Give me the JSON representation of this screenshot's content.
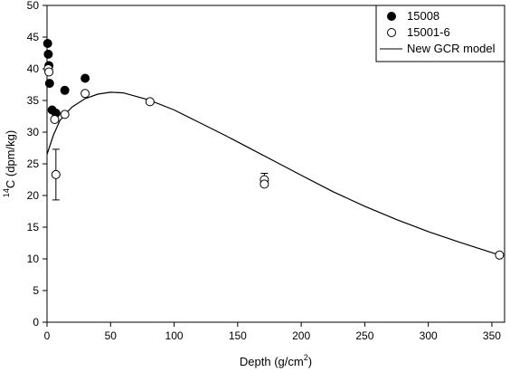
{
  "chart_data": {
    "type": "scatter",
    "xlabel": {
      "base": "Depth (g/cm",
      "sup": "2",
      "tail": ")"
    },
    "ylabel": {
      "sup": "14",
      "base": "C (dpm/kg)"
    },
    "xlim": [
      0,
      360
    ],
    "ylim": [
      0,
      50
    ],
    "x_ticks": [
      0,
      50,
      100,
      150,
      200,
      250,
      300,
      350
    ],
    "y_ticks": [
      0,
      5,
      10,
      15,
      20,
      25,
      30,
      35,
      40,
      45,
      50
    ],
    "legend_position": "top-right",
    "series": [
      {
        "name": "15008",
        "marker": "filled-circle",
        "points": [
          {
            "x": 0.5,
            "y": 44.0
          },
          {
            "x": 1.0,
            "y": 42.3
          },
          {
            "x": 1.5,
            "y": 40.5
          },
          {
            "x": 2.0,
            "y": 37.7
          },
          {
            "x": 4.0,
            "y": 33.5
          },
          {
            "x": 7.0,
            "y": 33.0
          },
          {
            "x": 14.0,
            "y": 36.6
          },
          {
            "x": 30.0,
            "y": 38.5
          }
        ]
      },
      {
        "name": "15001-6",
        "marker": "open-circle",
        "points": [
          {
            "x": 1.0,
            "y": 40.0
          },
          {
            "x": 1.5,
            "y": 39.5
          },
          {
            "x": 6.0,
            "y": 32.0
          },
          {
            "x": 7.0,
            "y": 23.3,
            "err": 4.0
          },
          {
            "x": 14.0,
            "y": 32.8
          },
          {
            "x": 30.0,
            "y": 36.1
          },
          {
            "x": 81.0,
            "y": 34.8
          },
          {
            "x": 171.0,
            "y": 22.5,
            "err": 1.0
          },
          {
            "x": 171.0,
            "y": 21.8
          },
          {
            "x": 356.0,
            "y": 10.6
          }
        ]
      },
      {
        "name": "New GCR model",
        "marker": "line",
        "points": [
          {
            "x": 0,
            "y": 26.5
          },
          {
            "x": 5,
            "y": 29.5
          },
          {
            "x": 10,
            "y": 31.8
          },
          {
            "x": 15,
            "y": 33.0
          },
          {
            "x": 20,
            "y": 34.0
          },
          {
            "x": 30,
            "y": 35.3
          },
          {
            "x": 40,
            "y": 36.0
          },
          {
            "x": 50,
            "y": 36.3
          },
          {
            "x": 60,
            "y": 36.2
          },
          {
            "x": 80,
            "y": 35.1
          },
          {
            "x": 100,
            "y": 33.5
          },
          {
            "x": 120,
            "y": 31.5
          },
          {
            "x": 140,
            "y": 29.5
          },
          {
            "x": 160,
            "y": 27.4
          },
          {
            "x": 180,
            "y": 25.3
          },
          {
            "x": 200,
            "y": 23.2
          },
          {
            "x": 225,
            "y": 20.6
          },
          {
            "x": 250,
            "y": 18.3
          },
          {
            "x": 275,
            "y": 16.2
          },
          {
            "x": 300,
            "y": 14.3
          },
          {
            "x": 325,
            "y": 12.6
          },
          {
            "x": 356,
            "y": 10.6
          }
        ]
      }
    ]
  }
}
